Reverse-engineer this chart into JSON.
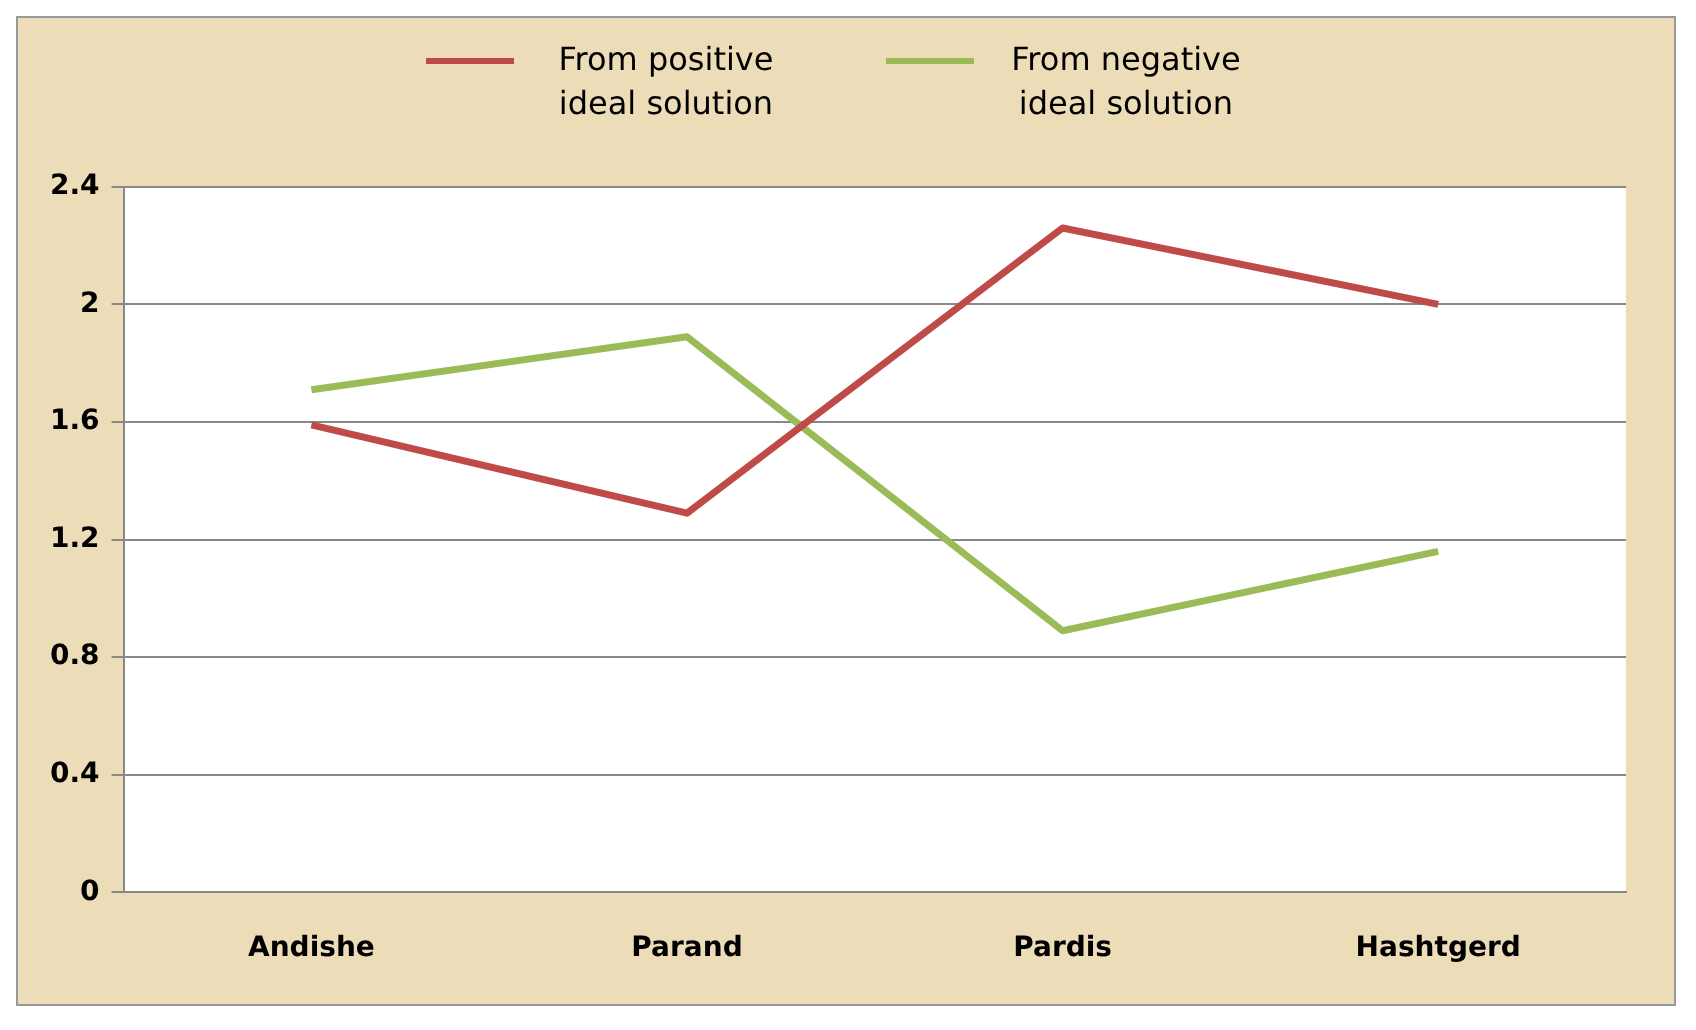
{
  "chart_data": {
    "type": "line",
    "categories": [
      "Andishe",
      "Parand",
      "Pardis",
      "Hashtgerd"
    ],
    "series": [
      {
        "name": "From positive ideal solution",
        "color": "#be4b48",
        "values": [
          1.59,
          1.29,
          2.26,
          2.0
        ]
      },
      {
        "name": "From negative ideal solution",
        "color": "#9bbb59",
        "values": [
          1.71,
          1.89,
          0.89,
          1.16
        ]
      }
    ],
    "ylim": [
      0,
      2.4
    ],
    "yticks": [
      0,
      0.4,
      0.8,
      1.2,
      1.6,
      2,
      2.4
    ],
    "grid": "y",
    "legend": "top",
    "marker": "none",
    "line_style": "solid"
  }
}
